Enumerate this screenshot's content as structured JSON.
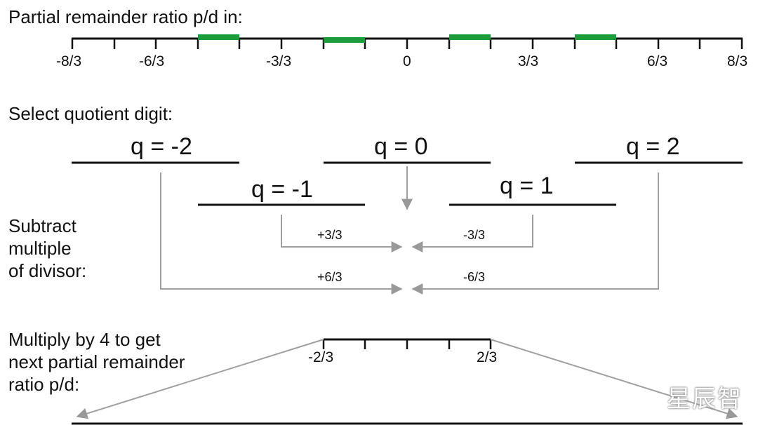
{
  "section1": {
    "label": "Partial remainder ratio p/d in:"
  },
  "axis1": {
    "ticks": [
      "-8/3",
      "-6/3",
      "-3/3",
      "0",
      "3/3",
      "6/3",
      "8/3"
    ],
    "highlight_color": "#1a9c3a"
  },
  "section2": {
    "label": "Select quotient digit:"
  },
  "digits": [
    "q = -2",
    "q = -1",
    "q = 0",
    "q = 1",
    "q = 2"
  ],
  "section3": {
    "label": "Subtract\nmultiple\nof divisor:"
  },
  "adjustments": [
    "+3/3",
    "-3/3",
    "+6/3",
    "-6/3"
  ],
  "section4": {
    "label": "Multiply by 4 to get\nnext partial remainder\nratio p/d:"
  },
  "axis2": {
    "ticks": [
      "-2/3",
      "2/3"
    ]
  },
  "watermark": "星辰智"
}
